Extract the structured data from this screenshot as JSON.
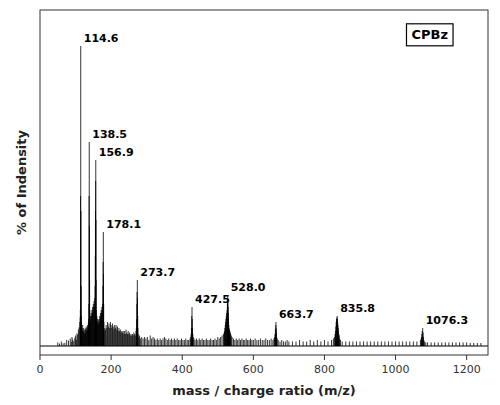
{
  "chart_data": {
    "type": "stem",
    "title": "CPBz",
    "x_label": "mass / charge ratio (m/z)",
    "y_label": "% of Indensity",
    "xlim": [
      0,
      1260
    ],
    "ylim": [
      -3,
      112
    ],
    "xticks": [
      0,
      200,
      400,
      600,
      800,
      1000,
      1200
    ],
    "tick_labels": "x",
    "grid": false,
    "color": "#000000",
    "x": [
      50,
      55,
      60,
      65,
      70,
      75,
      80,
      85,
      88,
      90,
      92,
      95,
      98,
      100,
      102,
      104,
      106,
      108,
      110,
      112,
      113,
      113.5,
      114.0,
      114.6,
      115.2,
      115.8,
      116.4,
      117,
      118,
      119,
      120,
      121,
      122,
      123,
      124,
      125,
      126,
      127,
      128,
      129,
      130,
      131,
      132,
      133,
      134,
      135,
      136,
      137,
      137.5,
      138.0,
      138.5,
      139.0,
      139.5,
      140.0,
      141,
      142,
      143,
      144,
      145,
      146,
      147,
      148,
      149,
      150,
      151,
      152,
      153,
      154,
      155,
      155.5,
      156.0,
      156.5,
      156.9,
      157.4,
      157.9,
      158.4,
      159,
      160,
      161,
      162,
      163,
      164,
      165,
      166,
      167,
      168,
      169,
      170,
      171,
      172,
      173,
      174,
      175,
      176,
      177,
      177.5,
      178.1,
      178.6,
      179.1,
      179.6,
      180,
      182,
      184,
      186,
      188,
      190,
      192,
      194,
      196,
      198,
      200,
      202,
      204,
      206,
      208,
      210,
      212,
      214,
      216,
      218,
      220,
      222,
      224,
      226,
      228,
      230,
      232,
      234,
      236,
      238,
      240,
      242,
      244,
      246,
      248,
      250,
      252,
      254,
      256,
      258,
      260,
      262,
      264,
      266,
      268,
      270,
      271,
      272,
      272.5,
      273.0,
      273.7,
      274.2,
      274.8,
      275.4,
      276,
      278,
      280,
      283,
      286,
      290,
      294,
      298,
      302,
      306,
      310,
      314,
      318,
      322,
      326,
      330,
      334,
      338,
      342,
      346,
      350,
      354,
      358,
      362,
      366,
      370,
      374,
      378,
      382,
      386,
      390,
      394,
      398,
      402,
      406,
      410,
      414,
      418,
      422,
      424,
      425,
      426,
      426.8,
      427.5,
      428.2,
      429.0,
      429.8,
      431,
      433,
      436,
      440,
      444,
      448,
      452,
      456,
      460,
      464,
      468,
      472,
      476,
      480,
      484,
      488,
      492,
      496,
      500,
      504,
      508,
      512,
      516,
      518,
      519,
      520,
      521,
      522,
      523,
      524,
      525,
      526,
      527,
      527.5,
      528.0,
      528.5,
      529.0,
      529.5,
      530.0,
      530.5,
      531.0,
      531.5,
      532.0,
      533.0,
      534.0,
      535.0,
      536.0,
      538,
      540,
      544,
      548,
      552,
      556,
      560,
      564,
      568,
      572,
      576,
      580,
      584,
      588,
      592,
      596,
      600,
      605,
      610,
      615,
      620,
      625,
      630,
      635,
      640,
      645,
      650,
      655,
      658,
      660,
      661,
      662,
      663,
      663.7,
      664.4,
      665.1,
      665.8,
      667,
      670,
      675,
      680,
      685,
      690,
      695,
      700,
      710,
      720,
      730,
      740,
      750,
      760,
      770,
      780,
      790,
      800,
      810,
      820,
      825,
      828,
      830,
      831,
      832,
      833,
      834,
      835,
      835.8,
      836.5,
      837.2,
      838.0,
      838.8,
      839.6,
      840.5,
      841.5,
      843,
      845,
      850,
      860,
      870,
      880,
      890,
      900,
      910,
      920,
      930,
      940,
      950,
      960,
      970,
      980,
      990,
      1000,
      1010,
      1020,
      1030,
      1040,
      1050,
      1060,
      1070,
      1072,
      1073,
      1074,
      1075,
      1076.3,
      1077.5,
      1078.5,
      1079.5,
      1081,
      1085,
      1090,
      1100,
      1110,
      1120,
      1130,
      1140,
      1150,
      1160,
      1170,
      1180,
      1190,
      1200,
      1210,
      1220,
      1230,
      1240
    ],
    "values": [
      1.2,
      0.8,
      1.5,
      0.9,
      1.1,
      2.0,
      1.8,
      2.5,
      1.4,
      3.0,
      2.2,
      1.6,
      2.8,
      3.5,
      2.1,
      4.2,
      3.8,
      5.5,
      6.2,
      8.0,
      9.5,
      12.0,
      50.0,
      100.0,
      45.0,
      20.0,
      10.0,
      8.0,
      6.0,
      5.0,
      7.0,
      5.5,
      4.5,
      6.0,
      5.0,
      4.0,
      5.5,
      4.2,
      5.8,
      4.5,
      6.5,
      5.0,
      6.0,
      5.5,
      7.0,
      6.5,
      8.0,
      9.0,
      14.0,
      50.0,
      68.0,
      40.0,
      22.0,
      12.0,
      8.0,
      10.0,
      9.0,
      11.0,
      10.0,
      12.0,
      11.0,
      13.0,
      12.0,
      14.0,
      13.0,
      15.0,
      14.0,
      16.0,
      20.0,
      30.0,
      45.0,
      55.0,
      62.0,
      42.0,
      22.0,
      12.0,
      8.0,
      10.0,
      8.0,
      9.0,
      7.0,
      8.5,
      7.5,
      9.0,
      8.0,
      10.0,
      9.0,
      11.0,
      10.0,
      12.0,
      11.0,
      13.0,
      12.0,
      14.0,
      20.0,
      28.0,
      38.0,
      24.0,
      14.0,
      8.0,
      5.0,
      6.0,
      5.5,
      7.0,
      6.0,
      8.0,
      6.5,
      7.5,
      6.0,
      8.0,
      7.0,
      6.0,
      7.5,
      6.5,
      5.5,
      7.0,
      6.0,
      7.0,
      5.5,
      6.5,
      5.0,
      6.0,
      5.0,
      5.5,
      4.5,
      5.0,
      4.5,
      5.0,
      4.0,
      5.0,
      4.0,
      5.5,
      4.5,
      4.0,
      5.0,
      4.0,
      4.5,
      3.5,
      4.0,
      3.5,
      4.0,
      3.5,
      4.5,
      4.0,
      3.5,
      5.0,
      6.0,
      9.0,
      14.0,
      18.0,
      22.0,
      16.0,
      10.0,
      6.0,
      4.0,
      3.0,
      3.5,
      2.5,
      3.0,
      2.5,
      3.0,
      2.5,
      3.0,
      2.0,
      3.5,
      2.5,
      3.0,
      2.5,
      2.0,
      2.5,
      2.0,
      2.5,
      2.0,
      2.5,
      3.0,
      2.5,
      2.0,
      2.5,
      2.0,
      2.5,
      2.0,
      2.5,
      2.0,
      2.5,
      2.0,
      2.0,
      2.5,
      2.0,
      2.0,
      2.5,
      2.0,
      2.0,
      2.5,
      3.0,
      4.0,
      6.0,
      10.0,
      13.0,
      9.0,
      6.0,
      4.0,
      3.0,
      2.5,
      2.0,
      2.5,
      2.0,
      2.5,
      2.0,
      2.5,
      2.0,
      2.0,
      2.5,
      2.0,
      2.0,
      2.5,
      2.0,
      2.0,
      2.5,
      2.0,
      3.0,
      2.5,
      3.0,
      3.5,
      4.0,
      4.5,
      5.0,
      6.0,
      7.0,
      8.0,
      9.0,
      10.0,
      11.0,
      12.0,
      14.0,
      15.0,
      17.0,
      15.0,
      13.0,
      11.0,
      9.0,
      8.0,
      7.0,
      6.0,
      5.0,
      5.5,
      5.0,
      4.5,
      4.0,
      3.5,
      3.0,
      2.5,
      2.0,
      2.5,
      2.0,
      2.5,
      2.0,
      2.5,
      2.0,
      2.0,
      2.5,
      2.0,
      2.0,
      2.5,
      2.0,
      2.0,
      2.5,
      2.0,
      2.0,
      2.5,
      2.0,
      2.0,
      2.5,
      2.0,
      2.0,
      2.5,
      2.0,
      2.5,
      3.0,
      4.0,
      5.5,
      7.0,
      8.0,
      6.0,
      4.5,
      3.0,
      2.5,
      2.0,
      1.5,
      2.0,
      1.5,
      1.5,
      2.0,
      1.5,
      1.5,
      1.5,
      2.0,
      1.5,
      1.5,
      2.0,
      1.5,
      2.0,
      1.5,
      2.0,
      1.5,
      2.0,
      2.5,
      3.0,
      4.0,
      5.0,
      6.5,
      8.0,
      9.0,
      9.5,
      10.0,
      9.0,
      8.0,
      7.0,
      6.0,
      5.0,
      4.0,
      3.5,
      2.5,
      2.0,
      1.5,
      1.5,
      1.5,
      1.5,
      1.5,
      1.5,
      1.5,
      1.5,
      1.5,
      1.5,
      1.5,
      1.5,
      1.5,
      1.5,
      1.5,
      1.5,
      1.5,
      1.5,
      1.5,
      1.5,
      1.5,
      1.5,
      2.0,
      2.5,
      3.0,
      4.0,
      5.0,
      6.0,
      4.5,
      3.0,
      2.0,
      1.5,
      1.2,
      1.2,
      1.2,
      1.2,
      1.2,
      1.2,
      1.2,
      1.2,
      1.2,
      1.2,
      1.2,
      1.2,
      1.2,
      1.0,
      1.0,
      1.0,
      1.0
    ],
    "annotations": [
      {
        "text": "114.6",
        "x": 114.6,
        "y": 100.0
      },
      {
        "text": "138.5",
        "x": 138.5,
        "y": 68.0
      },
      {
        "text": "156.9",
        "x": 156.9,
        "y": 62.0
      },
      {
        "text": "178.1",
        "x": 178.1,
        "y": 38.0
      },
      {
        "text": "273.7",
        "x": 273.7,
        "y": 22.0
      },
      {
        "text": "427.5",
        "x": 427.5,
        "y": 13.0
      },
      {
        "text": "528.0",
        "x": 528.0,
        "y": 17.0
      },
      {
        "text": "663.7",
        "x": 663.7,
        "y": 8.0
      },
      {
        "text": "835.8",
        "x": 835.8,
        "y": 10.0
      },
      {
        "text": "1076.3",
        "x": 1076.3,
        "y": 6.0
      }
    ]
  }
}
